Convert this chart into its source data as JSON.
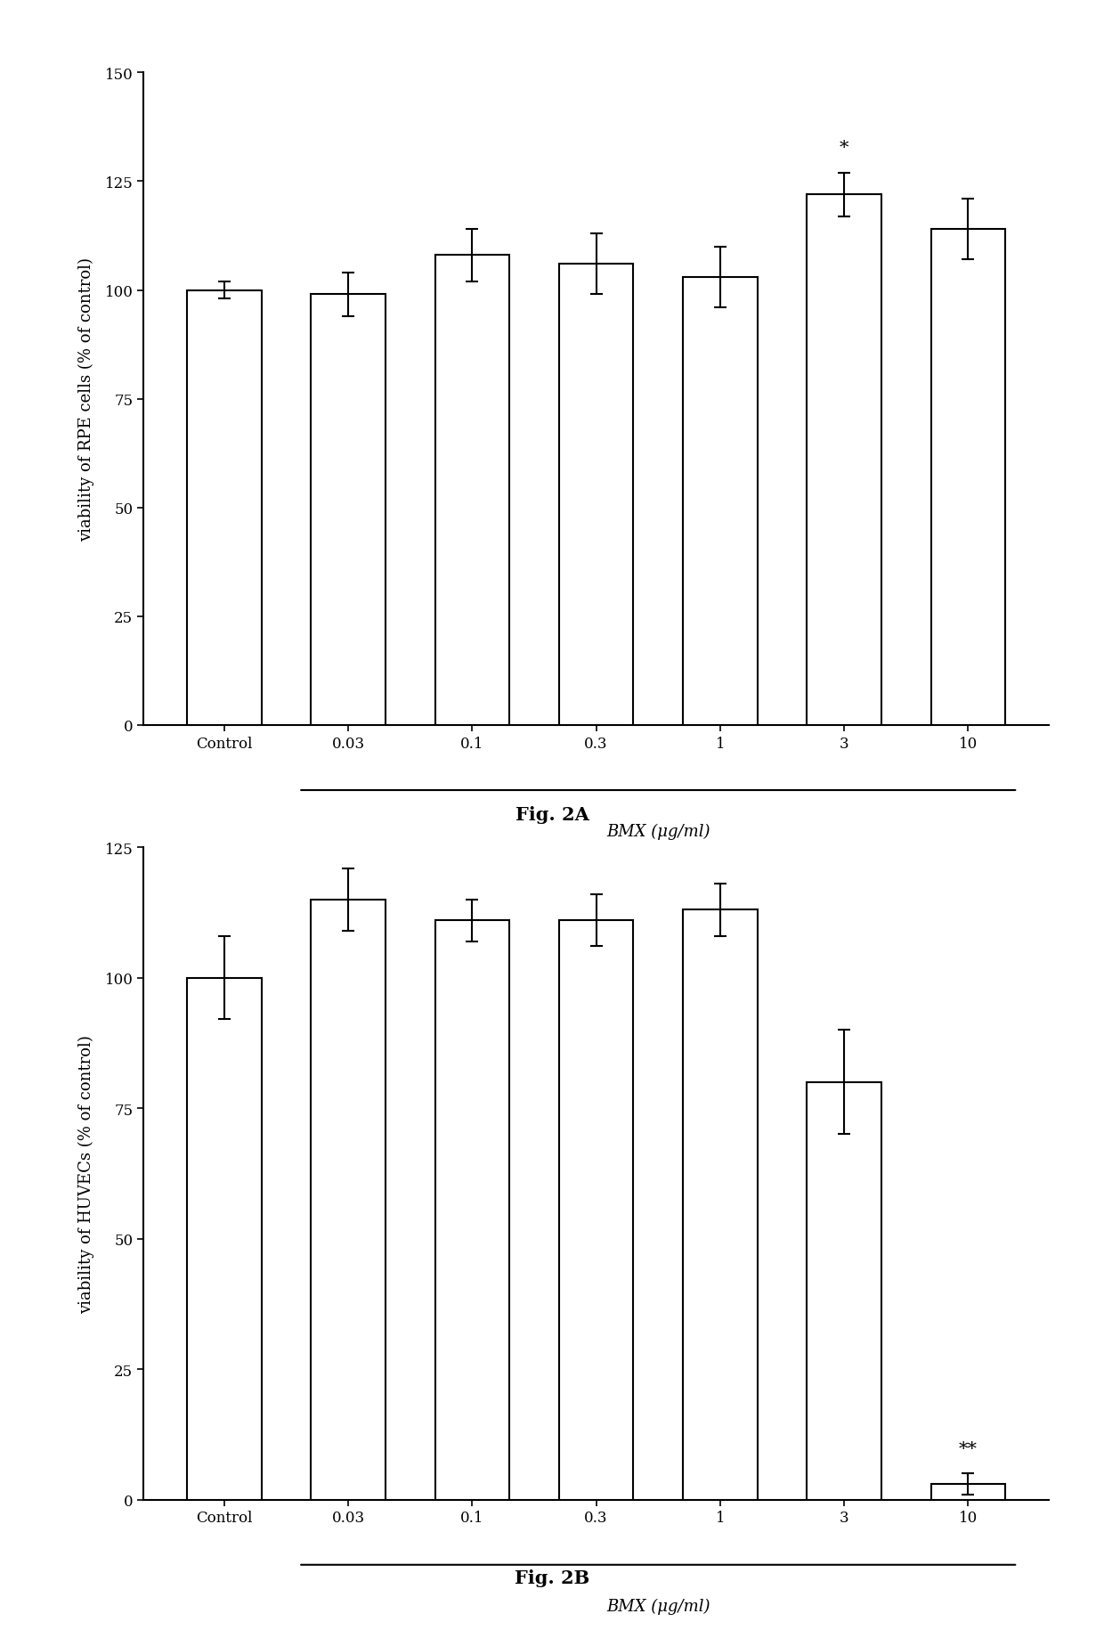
{
  "fig2A": {
    "categories": [
      "Control",
      "0.03",
      "0.1",
      "0.3",
      "1",
      "3",
      "10"
    ],
    "values": [
      100,
      99,
      108,
      106,
      103,
      122,
      114
    ],
    "errors": [
      2,
      5,
      6,
      7,
      7,
      5,
      7
    ],
    "ylabel": "viability of RPE cells (% of control)",
    "xlabel": "BMX (μg/ml)",
    "ylim": [
      0,
      150
    ],
    "yticks": [
      0,
      25,
      50,
      75,
      100,
      125,
      150
    ],
    "sig_label": "*",
    "sig_index": 5,
    "caption": "Fig. 2A"
  },
  "fig2B": {
    "categories": [
      "Control",
      "0.03",
      "0.1",
      "0.3",
      "1",
      "3",
      "10"
    ],
    "values": [
      100,
      115,
      111,
      111,
      113,
      80,
      3
    ],
    "errors": [
      8,
      6,
      4,
      5,
      5,
      10,
      2
    ],
    "ylabel": "viability of HUVECs (% of control)",
    "xlabel": "BMX (μg/ml)",
    "ylim": [
      0,
      125
    ],
    "yticks": [
      0,
      25,
      50,
      75,
      100,
      125
    ],
    "sig_label": "**",
    "sig_index": 6,
    "caption": "Fig. 2B"
  },
  "bar_color": "white",
  "bar_edgecolor": "black",
  "bar_linewidth": 1.5,
  "bar_width": 0.6,
  "background_color": "white",
  "font_family": "DejaVu Serif"
}
